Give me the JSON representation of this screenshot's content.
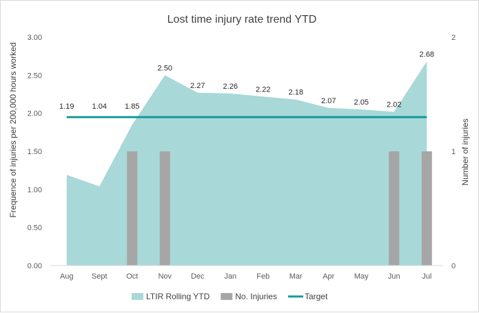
{
  "chart_data": {
    "type": "area",
    "title": "Lost time injury rate trend YTD",
    "categories": [
      "Aug",
      "Sept",
      "Oct",
      "Nov",
      "Dec",
      "Jan",
      "Feb",
      "Mar",
      "Apr",
      "May",
      "Jun",
      "Jul"
    ],
    "ylabel": "Frequence of injuries per 200,000 hours worked",
    "y2label": "Number of injuries",
    "ylim": [
      0,
      3
    ],
    "y2lim": [
      0,
      2
    ],
    "yticks": [
      "0.00",
      "0.50",
      "1.00",
      "1.50",
      "2.00",
      "2.50",
      "3.00"
    ],
    "y2ticks": [
      "0",
      "1",
      "2"
    ],
    "grid": false,
    "legend_position": "bottom",
    "series": [
      {
        "name": "LTIR Rolling YTD",
        "type": "area",
        "axis": "left",
        "color": "#a8d8d8",
        "values": [
          1.19,
          1.04,
          1.85,
          2.5,
          2.27,
          2.26,
          2.22,
          2.18,
          2.07,
          2.05,
          2.02,
          2.68
        ],
        "labels": [
          "1.19",
          "1.04",
          "1.85",
          "2.50",
          "2.27",
          "2.26",
          "2.22",
          "2.18",
          "2.07",
          "2.05",
          "2.02",
          "2.68"
        ]
      },
      {
        "name": "No. Injuries",
        "type": "bar",
        "axis": "right",
        "color": "#a6a6a6",
        "values": [
          0,
          0,
          1,
          1,
          0,
          0,
          0,
          0,
          0,
          0,
          1,
          1
        ]
      },
      {
        "name": "Target",
        "type": "line",
        "axis": "left",
        "color": "#159a98",
        "values": [
          1.95,
          1.95,
          1.95,
          1.95,
          1.95,
          1.95,
          1.95,
          1.95,
          1.95,
          1.95,
          1.95,
          1.95
        ]
      }
    ]
  }
}
